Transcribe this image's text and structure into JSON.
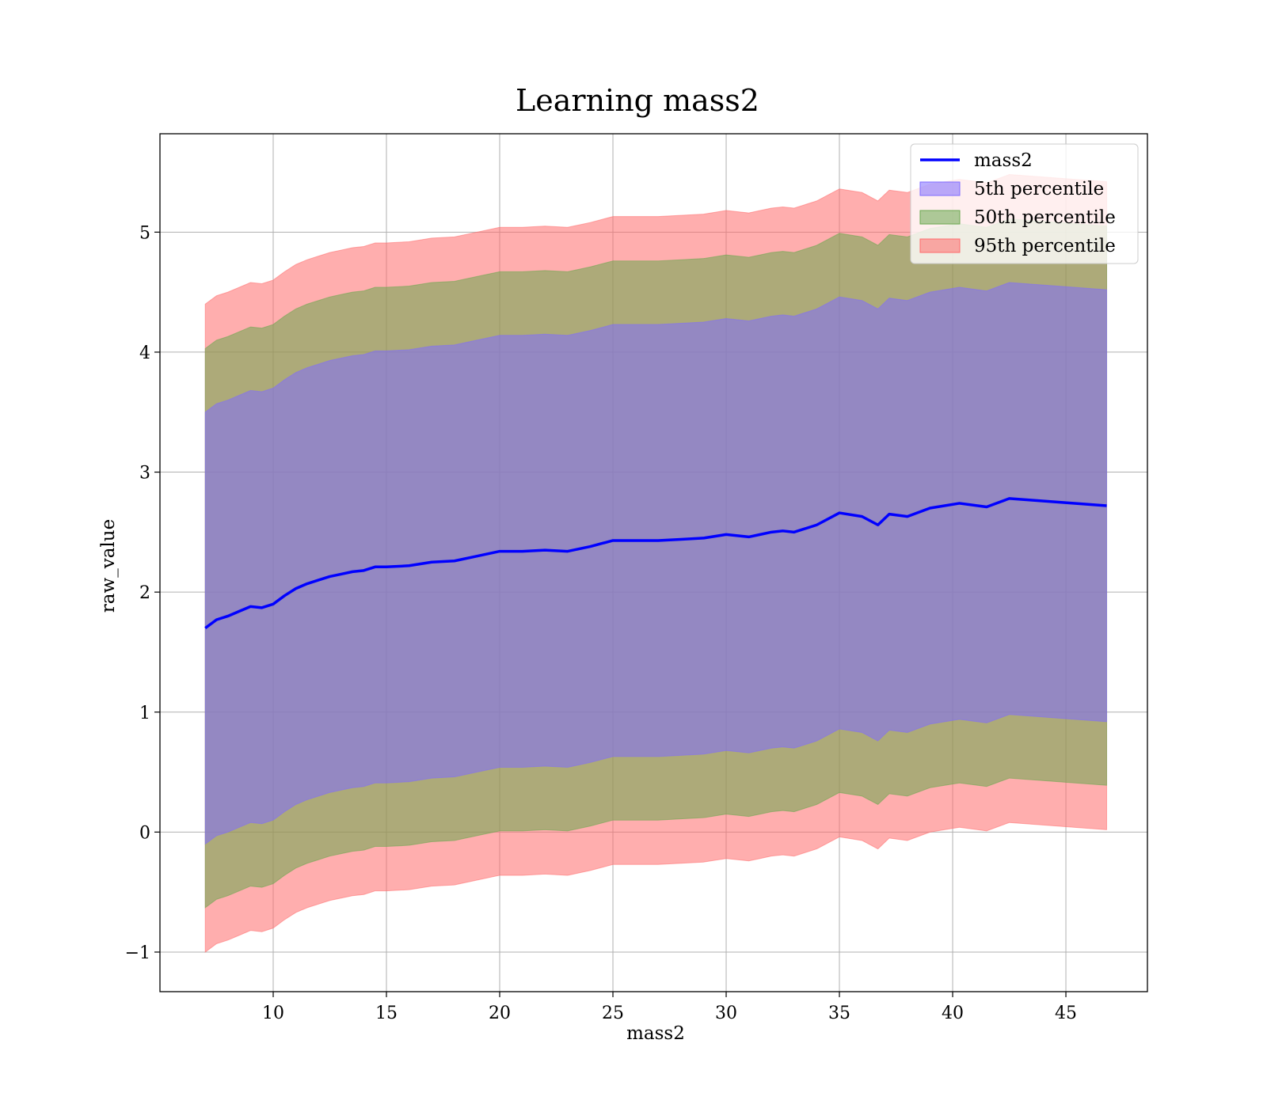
{
  "chart_data": {
    "type": "area",
    "title": "Learning mass2",
    "xlabel": "mass2",
    "ylabel": "raw_value",
    "xlim": [
      5.0,
      48.6
    ],
    "ylim": [
      -1.33,
      5.82
    ],
    "xticks": [
      10,
      15,
      20,
      25,
      30,
      35,
      40,
      45
    ],
    "yticks": [
      -1,
      0,
      1,
      2,
      3,
      4,
      5
    ],
    "ytick_labels": [
      "−1",
      "0",
      "1",
      "2",
      "3",
      "4",
      "5"
    ],
    "grid": true,
    "legend_position": "upper right",
    "x": [
      7.0,
      7.5,
      8.0,
      8.5,
      9.0,
      9.5,
      10.0,
      10.5,
      11.0,
      11.5,
      12.0,
      12.5,
      13.0,
      13.5,
      14.0,
      14.5,
      15.0,
      16.0,
      17.0,
      18.0,
      19.0,
      20.0,
      21.0,
      22.0,
      23.0,
      24.0,
      25.0,
      26.0,
      27.0,
      28.0,
      29.0,
      30.0,
      31.0,
      31.5,
      32.0,
      32.5,
      33.0,
      34.0,
      35.0,
      36.0,
      36.7,
      37.2,
      38.0,
      39.0,
      40.3,
      41.5,
      42.5,
      46.8
    ],
    "series": [
      {
        "name": "mass2",
        "kind": "line",
        "color": "#0000ff",
        "values": [
          1.7,
          1.77,
          1.8,
          1.84,
          1.88,
          1.87,
          1.9,
          1.97,
          2.03,
          2.07,
          2.1,
          2.13,
          2.15,
          2.17,
          2.18,
          2.21,
          2.21,
          2.22,
          2.25,
          2.26,
          2.3,
          2.34,
          2.34,
          2.35,
          2.34,
          2.38,
          2.43,
          2.43,
          2.43,
          2.44,
          2.45,
          2.48,
          2.46,
          2.48,
          2.5,
          2.51,
          2.5,
          2.56,
          2.66,
          2.63,
          2.56,
          2.65,
          2.63,
          2.7,
          2.74,
          2.71,
          2.78,
          2.72
        ]
      },
      {
        "name": "5th percentile",
        "kind": "band",
        "color": "#7f6bff",
        "opacity": 0.55,
        "lower": [
          -0.1,
          -0.03,
          0.0,
          0.04,
          0.08,
          0.07,
          0.1,
          0.17,
          0.23,
          0.27,
          0.3,
          0.33,
          0.35,
          0.37,
          0.38,
          0.41,
          0.41,
          0.42,
          0.45,
          0.46,
          0.5,
          0.54,
          0.54,
          0.55,
          0.54,
          0.58,
          0.63,
          0.63,
          0.63,
          0.64,
          0.65,
          0.68,
          0.66,
          0.68,
          0.7,
          0.71,
          0.7,
          0.76,
          0.86,
          0.83,
          0.76,
          0.85,
          0.83,
          0.9,
          0.94,
          0.91,
          0.98,
          0.92
        ],
        "upper": [
          3.5,
          3.57,
          3.6,
          3.64,
          3.68,
          3.67,
          3.7,
          3.77,
          3.83,
          3.87,
          3.9,
          3.93,
          3.95,
          3.97,
          3.98,
          4.01,
          4.01,
          4.02,
          4.05,
          4.06,
          4.1,
          4.14,
          4.14,
          4.15,
          4.14,
          4.18,
          4.23,
          4.23,
          4.23,
          4.24,
          4.25,
          4.28,
          4.26,
          4.28,
          4.3,
          4.31,
          4.3,
          4.36,
          4.46,
          4.43,
          4.36,
          4.45,
          4.43,
          4.5,
          4.54,
          4.51,
          4.58,
          4.52
        ]
      },
      {
        "name": "50th percentile",
        "kind": "band",
        "color": "#6aa84f",
        "opacity": 0.55,
        "lower": [
          -0.63,
          -0.56,
          -0.53,
          -0.49,
          -0.45,
          -0.46,
          -0.43,
          -0.36,
          -0.3,
          -0.26,
          -0.23,
          -0.2,
          -0.18,
          -0.16,
          -0.15,
          -0.12,
          -0.12,
          -0.11,
          -0.08,
          -0.07,
          -0.03,
          0.01,
          0.01,
          0.02,
          0.01,
          0.05,
          0.1,
          0.1,
          0.1,
          0.11,
          0.12,
          0.15,
          0.13,
          0.15,
          0.17,
          0.18,
          0.17,
          0.23,
          0.33,
          0.3,
          0.23,
          0.32,
          0.3,
          0.37,
          0.41,
          0.38,
          0.45,
          0.39
        ],
        "upper": [
          4.03,
          4.1,
          4.13,
          4.17,
          4.21,
          4.2,
          4.23,
          4.3,
          4.36,
          4.4,
          4.43,
          4.46,
          4.48,
          4.5,
          4.51,
          4.54,
          4.54,
          4.55,
          4.58,
          4.59,
          4.63,
          4.67,
          4.67,
          4.68,
          4.67,
          4.71,
          4.76,
          4.76,
          4.76,
          4.77,
          4.78,
          4.81,
          4.79,
          4.81,
          4.83,
          4.84,
          4.83,
          4.89,
          4.99,
          4.96,
          4.89,
          4.98,
          4.96,
          5.03,
          5.07,
          5.04,
          5.11,
          5.05
        ]
      },
      {
        "name": "95th percentile",
        "kind": "band",
        "color": "#ff6b6b",
        "opacity": 0.55,
        "lower": [
          -1.0,
          -0.93,
          -0.9,
          -0.86,
          -0.82,
          -0.83,
          -0.8,
          -0.73,
          -0.67,
          -0.63,
          -0.6,
          -0.57,
          -0.55,
          -0.53,
          -0.52,
          -0.49,
          -0.49,
          -0.48,
          -0.45,
          -0.44,
          -0.4,
          -0.36,
          -0.36,
          -0.35,
          -0.36,
          -0.32,
          -0.27,
          -0.27,
          -0.27,
          -0.26,
          -0.25,
          -0.22,
          -0.24,
          -0.22,
          -0.2,
          -0.19,
          -0.2,
          -0.14,
          -0.04,
          -0.07,
          -0.14,
          -0.05,
          -0.07,
          0.0,
          0.04,
          0.01,
          0.08,
          0.02
        ],
        "upper": [
          4.4,
          4.47,
          4.5,
          4.54,
          4.58,
          4.57,
          4.6,
          4.67,
          4.73,
          4.77,
          4.8,
          4.83,
          4.85,
          4.87,
          4.88,
          4.91,
          4.91,
          4.92,
          4.95,
          4.96,
          5.0,
          5.04,
          5.04,
          5.05,
          5.04,
          5.08,
          5.13,
          5.13,
          5.13,
          5.14,
          5.15,
          5.18,
          5.16,
          5.18,
          5.2,
          5.21,
          5.2,
          5.26,
          5.36,
          5.33,
          5.26,
          5.35,
          5.33,
          5.4,
          5.44,
          5.41,
          5.48,
          5.42
        ]
      }
    ]
  }
}
